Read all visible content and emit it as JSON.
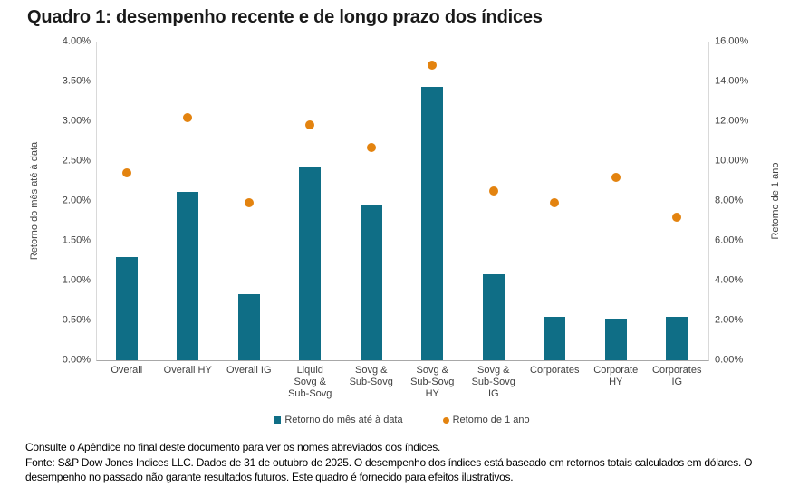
{
  "title": "Quadro 1: desempenho recente e de longo prazo dos índices",
  "colors": {
    "bar": "#0f6e86",
    "dot": "#e3830f",
    "plot_border": "#d9d9d9"
  },
  "chart_data": {
    "type": "bar",
    "subtype": "dual-axis bar + scatter",
    "categories": [
      "Overall",
      "Overall HY",
      "Overall IG",
      "Liquid Sovg & Sub-Sovg",
      "Sovg & Sub-Sovg",
      "Sovg & Sub-Sovg HY",
      "Sovg & Sub-Sovg IG",
      "Corporates",
      "Corporate HY",
      "Corporates IG"
    ],
    "category_labels_wrapped": [
      "Overall",
      "Overall HY",
      "Overall IG",
      "Liquid\nSovg &\nSub-Sovg",
      "Sovg &\nSub-Sovg",
      "Sovg &\nSub-Sovg\nHY",
      "Sovg &\nSub-Sovg\nIG",
      "Corporates",
      "Corporate\nHY",
      "Corporates\nIG"
    ],
    "series": [
      {
        "name": "Retorno do mês até à data",
        "type": "bar",
        "axis": "left",
        "color": "#0f6e86",
        "values": [
          1.29,
          2.11,
          0.83,
          2.42,
          1.95,
          3.43,
          1.08,
          0.54,
          0.52,
          0.55
        ]
      },
      {
        "name": "Retorno de 1 ano",
        "type": "scatter",
        "axis": "right",
        "color": "#e3830f",
        "values": [
          9.4,
          12.2,
          7.9,
          11.8,
          10.7,
          14.8,
          8.5,
          7.9,
          9.2,
          7.2
        ]
      }
    ],
    "left_axis": {
      "title": "Retorno do mês até à data",
      "min": 0,
      "max": 4,
      "step": 0.5,
      "ticks": [
        "4.00%",
        "3.50%",
        "3.00%",
        "2.50%",
        "2.00%",
        "1.50%",
        "1.00%",
        "0.50%",
        "0.00%"
      ]
    },
    "right_axis": {
      "title": "Retorno de 1 ano",
      "min": 0,
      "max": 16,
      "step": 2,
      "ticks": [
        "16.00%",
        "14.00%",
        "12.00%",
        "10.00%",
        "8.00%",
        "6.00%",
        "4.00%",
        "2.00%",
        "0.00%"
      ]
    },
    "grid": false,
    "legend_position": "bottom"
  },
  "footer": {
    "line1": "Consulte o Apêndice no final deste documento para ver os nomes abreviados dos índices.",
    "line2": "Fonte: S&P Dow Jones Indices LLC. Dados de 31 de outubro de 2025. O desempenho dos índices está baseado em retornos totais calculados em dólares. O desempenho no passado não garante resultados futuros. Este quadro é fornecido para efeitos ilustrativos."
  }
}
